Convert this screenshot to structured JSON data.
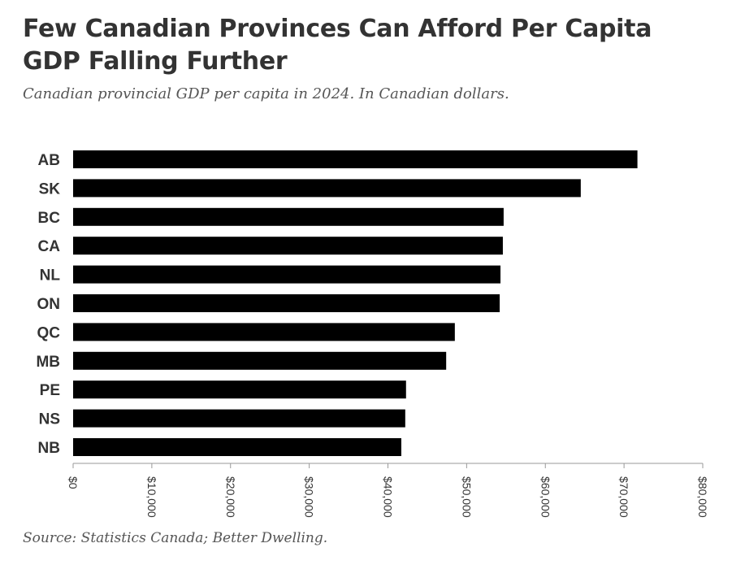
{
  "title": "Few Canadian Provinces Can Afford Per Capita GDP Falling Further",
  "subtitle": "Canadian provincial GDP per capita in 2024. In Canadian dollars.",
  "source": "Source: Statistics Canada; Better Dwelling.",
  "colors": {
    "bar": "#000000",
    "text": "#333333",
    "axis": "#999999"
  },
  "chart_data": {
    "type": "bar",
    "orientation": "horizontal",
    "categories": [
      "AB",
      "SK",
      "BC",
      "CA",
      "NL",
      "ON",
      "QC",
      "MB",
      "PE",
      "NS",
      "NB"
    ],
    "values": [
      71700,
      64500,
      54700,
      54600,
      54300,
      54200,
      48500,
      47400,
      42300,
      42200,
      41700
    ],
    "xlim": [
      0,
      80000
    ],
    "xticks": [
      {
        "value": 0,
        "label": "$0"
      },
      {
        "value": 10000,
        "label": "$10,000"
      },
      {
        "value": 20000,
        "label": "$20,000"
      },
      {
        "value": 30000,
        "label": "$30,000"
      },
      {
        "value": 40000,
        "label": "$40,000"
      },
      {
        "value": 50000,
        "label": "$50,000"
      },
      {
        "value": 60000,
        "label": "$60,000"
      },
      {
        "value": 70000,
        "label": "$70,000"
      },
      {
        "value": 80000,
        "label": "$80,000"
      }
    ],
    "grid": false,
    "legend": "none"
  }
}
